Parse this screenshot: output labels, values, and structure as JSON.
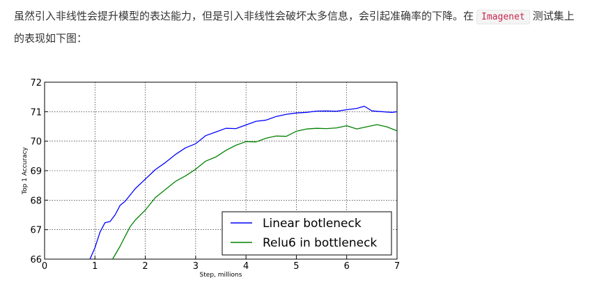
{
  "article": {
    "text_before": "虽然引入非线性会提升模型的表达能力，但是引入非线性会破坏太多信息，会引起准确率的下降。在",
    "code": "Imagenet",
    "text_after": "测试集上的表现如下图："
  },
  "chart_data": {
    "type": "line",
    "title": "",
    "xlabel": "Step, millions",
    "ylabel": "Top 1 Accuracy",
    "xlim": [
      0,
      7
    ],
    "ylim": [
      66,
      72
    ],
    "xticks": [
      "0",
      "1",
      "2",
      "3",
      "4",
      "5",
      "6",
      "7"
    ],
    "yticks": [
      "66",
      "67",
      "68",
      "69",
      "70",
      "71",
      "72"
    ],
    "grid": true,
    "legend_position": "lower-right",
    "series": [
      {
        "name": "Linear botleneck",
        "color": "#0000ff",
        "x": [
          0.9,
          1.0,
          1.1,
          1.2,
          1.3,
          1.4,
          1.5,
          1.6,
          1.8,
          2.0,
          2.2,
          2.4,
          2.6,
          2.8,
          3.0,
          3.2,
          3.4,
          3.6,
          3.8,
          4.0,
          4.2,
          4.4,
          4.6,
          4.8,
          5.0,
          5.2,
          5.4,
          5.6,
          5.8,
          6.0,
          6.2,
          6.35,
          6.5,
          6.7,
          6.9,
          7.0
        ],
        "y": [
          66.0,
          66.4,
          66.9,
          67.2,
          67.3,
          67.5,
          67.8,
          68.0,
          68.4,
          68.7,
          69.0,
          69.3,
          69.55,
          69.75,
          69.95,
          70.2,
          70.3,
          70.4,
          70.45,
          70.55,
          70.65,
          70.75,
          70.85,
          70.9,
          70.92,
          71.0,
          71.02,
          71.0,
          71.05,
          71.08,
          71.1,
          71.15,
          71.05,
          71.0,
          70.95,
          71.0
        ]
      },
      {
        "name": "Relu6 in bottleneck",
        "color": "#008000",
        "x": [
          1.35,
          1.5,
          1.6,
          1.7,
          1.8,
          2.0,
          2.2,
          2.4,
          2.6,
          2.8,
          3.0,
          3.2,
          3.4,
          3.6,
          3.8,
          4.0,
          4.2,
          4.4,
          4.6,
          4.8,
          5.0,
          5.2,
          5.4,
          5.6,
          5.8,
          6.0,
          6.2,
          6.4,
          6.6,
          6.8,
          7.0
        ],
        "y": [
          66.0,
          66.4,
          66.8,
          67.1,
          67.3,
          67.7,
          68.1,
          68.35,
          68.6,
          68.85,
          69.05,
          69.3,
          69.5,
          69.7,
          69.85,
          69.95,
          70.0,
          70.1,
          70.15,
          70.2,
          70.35,
          70.4,
          70.4,
          70.45,
          70.45,
          70.5,
          70.45,
          70.5,
          70.55,
          70.45,
          70.35
        ]
      }
    ]
  }
}
